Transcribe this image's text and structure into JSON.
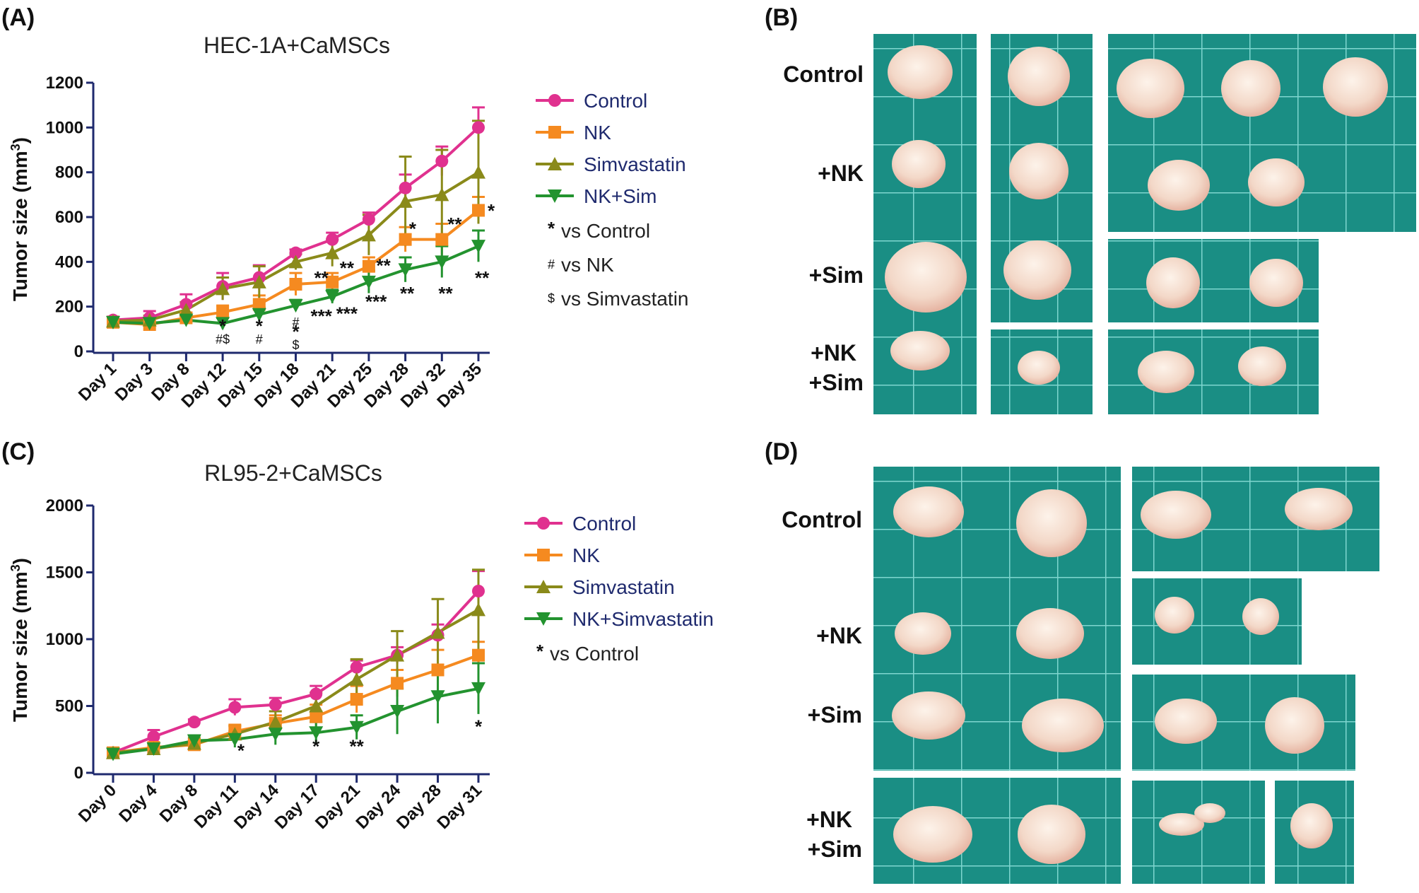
{
  "panels": {
    "A": "(A)",
    "B": "(B)",
    "C": "(C)",
    "D": "(D)"
  },
  "legend_symbols": {
    "star": "*",
    "hash": "#",
    "dollar": "$"
  },
  "unit_superscript": "3",
  "chart_data": [
    {
      "id": "A",
      "type": "line",
      "title": "HEC-1A+CaMSCs",
      "ylabel": "Tumor size (mm",
      "ylabel_suffix": ")",
      "ylim": [
        0,
        1200
      ],
      "yticks": [
        0,
        200,
        400,
        600,
        800,
        1000,
        1200
      ],
      "categories": [
        "Day 1",
        "Day 3",
        "Day 8",
        "Day 12",
        "Day 15",
        "Day 18",
        "Day 21",
        "Day 25",
        "Day 28",
        "Day 32",
        "Day 35"
      ],
      "series": [
        {
          "name": "Control",
          "color": "#e0318f",
          "marker": "circle",
          "values": [
            140,
            150,
            210,
            290,
            330,
            440,
            500,
            590,
            730,
            850,
            1000
          ],
          "errors": [
            15,
            30,
            45,
            60,
            55,
            15,
            30,
            30,
            60,
            65,
            90
          ]
        },
        {
          "name": "NK",
          "color": "#f58a20",
          "marker": "square",
          "values": [
            130,
            120,
            150,
            175,
            210,
            300,
            310,
            380,
            500,
            500,
            630
          ],
          "errors": [
            10,
            15,
            20,
            30,
            40,
            50,
            40,
            40,
            55,
            70,
            60
          ]
        },
        {
          "name": "Simvastatin",
          "color": "#8a8a1a",
          "marker": "triangle-up",
          "values": [
            135,
            140,
            185,
            280,
            310,
            400,
            440,
            520,
            670,
            700,
            800
          ],
          "errors": [
            15,
            20,
            35,
            50,
            70,
            35,
            60,
            90,
            200,
            200,
            230
          ]
        },
        {
          "name": "NK+Sim",
          "color": "#23932f",
          "marker": "triangle-down",
          "values": [
            130,
            125,
            140,
            125,
            165,
            205,
            245,
            310,
            365,
            400,
            470
          ],
          "errors": [
            15,
            20,
            20,
            25,
            30,
            25,
            30,
            50,
            55,
            70,
            70
          ]
        }
      ],
      "legend_notes": [
        "vs Control",
        "vs NK",
        "vs Simvastatin"
      ],
      "annotations": [
        {
          "cat": 3,
          "value": 85,
          "text": "*",
          "kind": "star"
        },
        {
          "cat": 3,
          "value": 35,
          "text": "#$",
          "kind": "hash"
        },
        {
          "cat": 4,
          "value": 85,
          "text": "*",
          "kind": "star"
        },
        {
          "cat": 4,
          "value": 35,
          "text": "#",
          "kind": "hash"
        },
        {
          "cat": 5,
          "value": 110,
          "text": "#",
          "kind": "hash"
        },
        {
          "cat": 5,
          "value": 60,
          "text": "*",
          "kind": "star"
        },
        {
          "cat": 5,
          "value": 10,
          "text": "$",
          "kind": "hash"
        },
        {
          "cat": 5.7,
          "value": 300,
          "text": "**",
          "kind": "star"
        },
        {
          "cat": 5.7,
          "value": 130,
          "text": "***",
          "kind": "star"
        },
        {
          "cat": 6.4,
          "value": 345,
          "text": "**",
          "kind": "star"
        },
        {
          "cat": 6.4,
          "value": 140,
          "text": "***",
          "kind": "star"
        },
        {
          "cat": 7.4,
          "value": 355,
          "text": "**",
          "kind": "star"
        },
        {
          "cat": 7.2,
          "value": 195,
          "text": "***",
          "kind": "star"
        },
        {
          "cat": 8.2,
          "value": 520,
          "text": "*",
          "kind": "star"
        },
        {
          "cat": 8.05,
          "value": 230,
          "text": "**",
          "kind": "star"
        },
        {
          "cat": 9.35,
          "value": 540,
          "text": "**",
          "kind": "star"
        },
        {
          "cat": 9.1,
          "value": 230,
          "text": "**",
          "kind": "star"
        },
        {
          "cat": 10.35,
          "value": 600,
          "text": "*",
          "kind": "star"
        },
        {
          "cat": 10.1,
          "value": 300,
          "text": "**",
          "kind": "star"
        }
      ]
    },
    {
      "id": "C",
      "type": "line",
      "title": "RL95-2+CaMSCs",
      "ylabel": "Tumor size (mm",
      "ylabel_suffix": ")",
      "ylim": [
        0,
        2000
      ],
      "yticks": [
        0,
        500,
        1000,
        1500,
        2000
      ],
      "categories": [
        "Day 0",
        "Day 4",
        "Day 8",
        "Day 11",
        "Day 14",
        "Day 17",
        "Day 21",
        "Day 24",
        "Day 28",
        "Day 31"
      ],
      "series": [
        {
          "name": "Control",
          "color": "#e0318f",
          "marker": "circle",
          "values": [
            150,
            270,
            380,
            490,
            510,
            590,
            790,
            880,
            1030,
            1360
          ],
          "errors": [
            20,
            50,
            20,
            60,
            50,
            60,
            50,
            60,
            80,
            150
          ]
        },
        {
          "name": "NK",
          "color": "#f58a20",
          "marker": "square",
          "values": [
            150,
            190,
            210,
            310,
            370,
            420,
            550,
            670,
            770,
            880
          ],
          "errors": [
            20,
            30,
            30,
            50,
            60,
            90,
            100,
            100,
            150,
            100
          ]
        },
        {
          "name": "Simvastatin",
          "color": "#8a8a1a",
          "marker": "triangle-up",
          "values": [
            150,
            180,
            220,
            290,
            380,
            500,
            700,
            880,
            1050,
            1220
          ],
          "errors": [
            20,
            30,
            40,
            60,
            80,
            100,
            150,
            180,
            250,
            300
          ]
        },
        {
          "name": "NK+Simvastatin",
          "color": "#23932f",
          "marker": "triangle-down",
          "values": [
            140,
            180,
            240,
            250,
            290,
            300,
            340,
            460,
            570,
            630
          ],
          "errors": [
            20,
            30,
            40,
            60,
            80,
            80,
            90,
            170,
            200,
            190
          ]
        }
      ],
      "legend_notes": [
        "vs Control"
      ],
      "annotations": [
        {
          "cat": 3.15,
          "value": 120,
          "text": "*",
          "kind": "star"
        },
        {
          "cat": 5,
          "value": 150,
          "text": "*",
          "kind": "star"
        },
        {
          "cat": 6,
          "value": 150,
          "text": "**",
          "kind": "star"
        },
        {
          "cat": 9,
          "value": 300,
          "text": "*",
          "kind": "star"
        }
      ]
    }
  ],
  "photo_panel_B": {
    "rows": [
      "Control",
      "+NK",
      "+Sim",
      "+NK",
      "+Sim"
    ]
  },
  "photo_panel_D": {
    "rows": [
      "Control",
      "+NK",
      "+Sim",
      "+NK",
      "+Sim"
    ]
  }
}
